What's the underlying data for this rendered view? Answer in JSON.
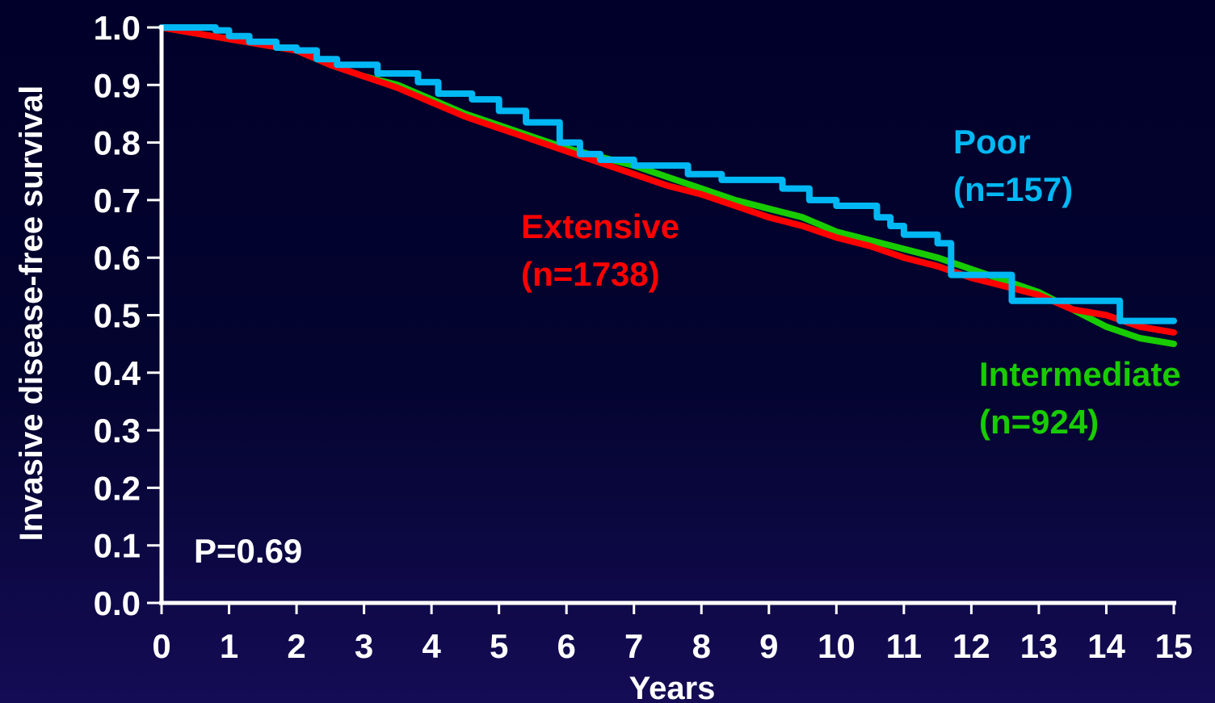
{
  "chart_data": {
    "type": "line",
    "xlabel": "Years",
    "ylabel": "Invasive disease-free survival",
    "xlim": [
      0,
      15
    ],
    "ylim": [
      0,
      1
    ],
    "x_ticks": [
      "0",
      "1",
      "2",
      "3",
      "4",
      "5",
      "6",
      "7",
      "8",
      "9",
      "10",
      "11",
      "12",
      "13",
      "14",
      "15"
    ],
    "y_ticks": [
      "0.0",
      "0.1",
      "0.2",
      "0.3",
      "0.4",
      "0.5",
      "0.6",
      "0.7",
      "0.8",
      "0.9",
      "1.0"
    ],
    "grid": false,
    "pvalue_label": "P=0.69",
    "series": [
      {
        "name": "Extensive",
        "n_label": "(n=1738)",
        "color": "#ff0000",
        "step": false,
        "points": [
          [
            0,
            1.0
          ],
          [
            1,
            0.98
          ],
          [
            2,
            0.96
          ],
          [
            2.5,
            0.935
          ],
          [
            3,
            0.915
          ],
          [
            3.5,
            0.895
          ],
          [
            4,
            0.87
          ],
          [
            4.5,
            0.845
          ],
          [
            5,
            0.825
          ],
          [
            5.5,
            0.805
          ],
          [
            6,
            0.785
          ],
          [
            6.5,
            0.765
          ],
          [
            7,
            0.745
          ],
          [
            7.5,
            0.725
          ],
          [
            8,
            0.71
          ],
          [
            8.5,
            0.69
          ],
          [
            9,
            0.67
          ],
          [
            9.5,
            0.655
          ],
          [
            10,
            0.635
          ],
          [
            10.5,
            0.62
          ],
          [
            11,
            0.6
          ],
          [
            11.5,
            0.585
          ],
          [
            12,
            0.565
          ],
          [
            12.5,
            0.55
          ],
          [
            13,
            0.535
          ],
          [
            13.5,
            0.51
          ],
          [
            14,
            0.5
          ],
          [
            14.5,
            0.48
          ],
          [
            15,
            0.47
          ]
        ]
      },
      {
        "name": "Intermediate",
        "n_label": "(n=924)",
        "color": "#18cc00",
        "step": false,
        "points": [
          [
            0,
            1.0
          ],
          [
            1,
            0.98
          ],
          [
            2,
            0.96
          ],
          [
            2.5,
            0.935
          ],
          [
            3,
            0.915
          ],
          [
            3.5,
            0.9
          ],
          [
            4,
            0.875
          ],
          [
            4.5,
            0.85
          ],
          [
            5,
            0.83
          ],
          [
            5.5,
            0.81
          ],
          [
            6,
            0.79
          ],
          [
            6.5,
            0.775
          ],
          [
            7,
            0.76
          ],
          [
            7.5,
            0.74
          ],
          [
            8,
            0.72
          ],
          [
            8.5,
            0.7
          ],
          [
            9,
            0.685
          ],
          [
            9.5,
            0.67
          ],
          [
            10,
            0.645
          ],
          [
            10.5,
            0.63
          ],
          [
            11,
            0.615
          ],
          [
            11.5,
            0.6
          ],
          [
            12,
            0.58
          ],
          [
            12.5,
            0.56
          ],
          [
            13,
            0.54
          ],
          [
            13.5,
            0.51
          ],
          [
            14,
            0.48
          ],
          [
            14.5,
            0.46
          ],
          [
            15,
            0.45
          ]
        ]
      },
      {
        "name": "Poor",
        "n_label": "(n=157)",
        "color": "#00b8f4",
        "step": true,
        "points": [
          [
            0,
            1.0
          ],
          [
            0.8,
            0.995
          ],
          [
            1.0,
            0.985
          ],
          [
            1.3,
            0.975
          ],
          [
            1.7,
            0.965
          ],
          [
            2.0,
            0.96
          ],
          [
            2.3,
            0.945
          ],
          [
            2.6,
            0.935
          ],
          [
            3.2,
            0.92
          ],
          [
            3.8,
            0.905
          ],
          [
            4.1,
            0.885
          ],
          [
            4.6,
            0.875
          ],
          [
            5.0,
            0.855
          ],
          [
            5.4,
            0.835
          ],
          [
            5.9,
            0.8
          ],
          [
            6.2,
            0.78
          ],
          [
            6.5,
            0.77
          ],
          [
            7.0,
            0.76
          ],
          [
            7.8,
            0.745
          ],
          [
            8.3,
            0.735
          ],
          [
            9.2,
            0.72
          ],
          [
            9.6,
            0.7
          ],
          [
            10.0,
            0.69
          ],
          [
            10.6,
            0.67
          ],
          [
            10.8,
            0.655
          ],
          [
            11.0,
            0.64
          ],
          [
            11.5,
            0.625
          ],
          [
            11.7,
            0.57
          ],
          [
            12.6,
            0.525
          ],
          [
            13.2,
            0.525
          ],
          [
            14.2,
            0.49
          ],
          [
            15.0,
            0.49
          ]
        ]
      }
    ]
  }
}
